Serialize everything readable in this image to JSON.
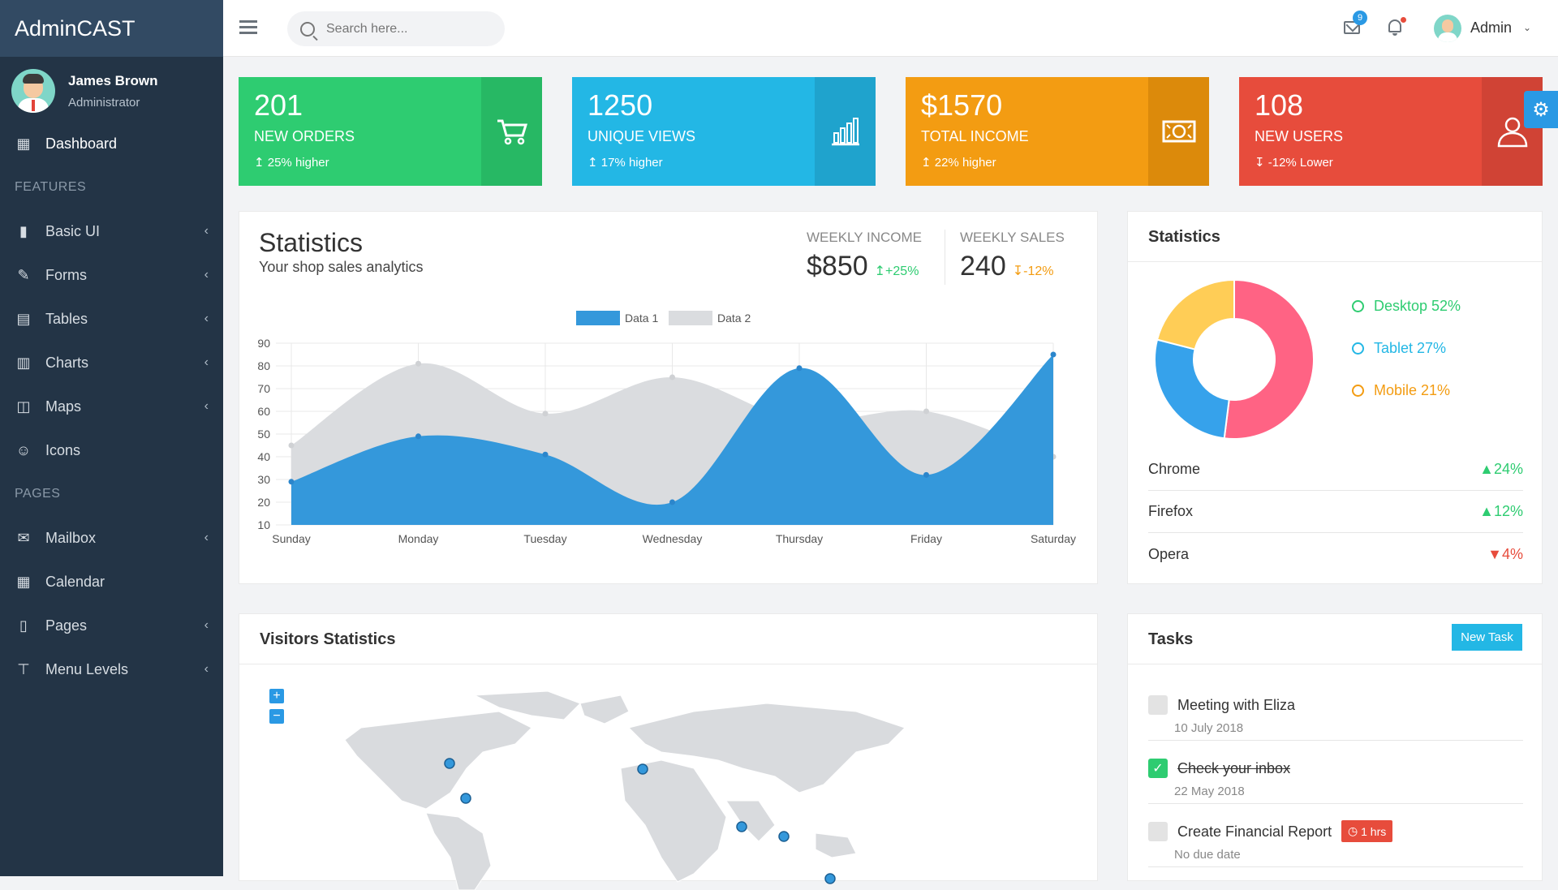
{
  "brand": "AdminCAST",
  "user": {
    "name": "James Brown",
    "role": "Administrator"
  },
  "sidebar": {
    "items": [
      {
        "label": "Dashboard"
      },
      {
        "section": "FEATURES"
      },
      {
        "label": "Basic UI"
      },
      {
        "label": "Forms"
      },
      {
        "label": "Tables"
      },
      {
        "label": "Charts"
      },
      {
        "label": "Maps"
      },
      {
        "label": "Icons"
      },
      {
        "section": "PAGES"
      },
      {
        "label": "Mailbox"
      },
      {
        "label": "Calendar"
      },
      {
        "label": "Pages"
      },
      {
        "label": "Menu Levels"
      }
    ]
  },
  "topbar": {
    "search_placeholder": "Search here...",
    "mail_count": "9",
    "user_label": "Admin"
  },
  "cards": [
    {
      "value": "201",
      "label": "NEW ORDERS",
      "sub": "25% higher",
      "color": "#2ecc71"
    },
    {
      "value": "1250",
      "label": "UNIQUE VIEWS",
      "sub": "17% higher",
      "color": "#23b7e5"
    },
    {
      "value": "$1570",
      "label": "TOTAL INCOME",
      "sub": "22% higher",
      "color": "#f39c12"
    },
    {
      "value": "108",
      "label": "NEW USERS",
      "sub": "-12% Lower",
      "color": "#e74c3c"
    }
  ],
  "statistics": {
    "title": "Statistics",
    "subtitle": "Your shop sales analytics",
    "weekly_income_label": "WEEKLY INCOME",
    "weekly_income": "$850",
    "weekly_income_delta": "+25%",
    "weekly_sales_label": "WEEKLY SALES",
    "weekly_sales": "240",
    "weekly_sales_delta": "-12%"
  },
  "chart_data": {
    "type": "area",
    "categories": [
      "Sunday",
      "Monday",
      "Tuesday",
      "Wednesday",
      "Thursday",
      "Friday",
      "Saturday"
    ],
    "series": [
      {
        "name": "Data 1",
        "values": [
          29,
          49,
          41,
          20,
          79,
          32,
          85
        ],
        "color": "#3498db"
      },
      {
        "name": "Data 2",
        "values": [
          45,
          81,
          59,
          75,
          56,
          60,
          40
        ],
        "color": "#dadcdf"
      }
    ],
    "yticks": [
      10,
      20,
      30,
      40,
      50,
      60,
      70,
      80,
      90
    ],
    "ylim": [
      10,
      90
    ],
    "grid": true,
    "legend": "top-center"
  },
  "side_stats": {
    "title": "Statistics",
    "donut": [
      {
        "label": "Desktop 52%",
        "value": 52,
        "color": "#ff6384"
      },
      {
        "label": "Tablet 27%",
        "value": 27,
        "color": "#36a2eb"
      },
      {
        "label": "Mobile 21%",
        "value": 21,
        "color": "#ffcd56"
      }
    ],
    "legend_colors": [
      "#2ecc71",
      "#23b7e5",
      "#f39c12"
    ],
    "browsers": [
      {
        "name": "Chrome",
        "delta": "24%",
        "up": true
      },
      {
        "name": "Firefox",
        "delta": "12%",
        "up": true
      },
      {
        "name": "Opera",
        "delta": "4%",
        "up": false
      }
    ]
  },
  "visitors": {
    "title": "Visitors Statistics",
    "zoom_in": "+",
    "zoom_out": "−"
  },
  "tasks": {
    "title": "Tasks",
    "new_task_label": "New Task",
    "items": [
      {
        "title": "Meeting with Eliza",
        "date": "10 July 2018",
        "done": false
      },
      {
        "title": "Check your inbox",
        "date": "22 May 2018",
        "done": true
      },
      {
        "title": "Create Financial Report",
        "date": "No due date",
        "done": false,
        "tag": "1 hrs"
      }
    ]
  }
}
